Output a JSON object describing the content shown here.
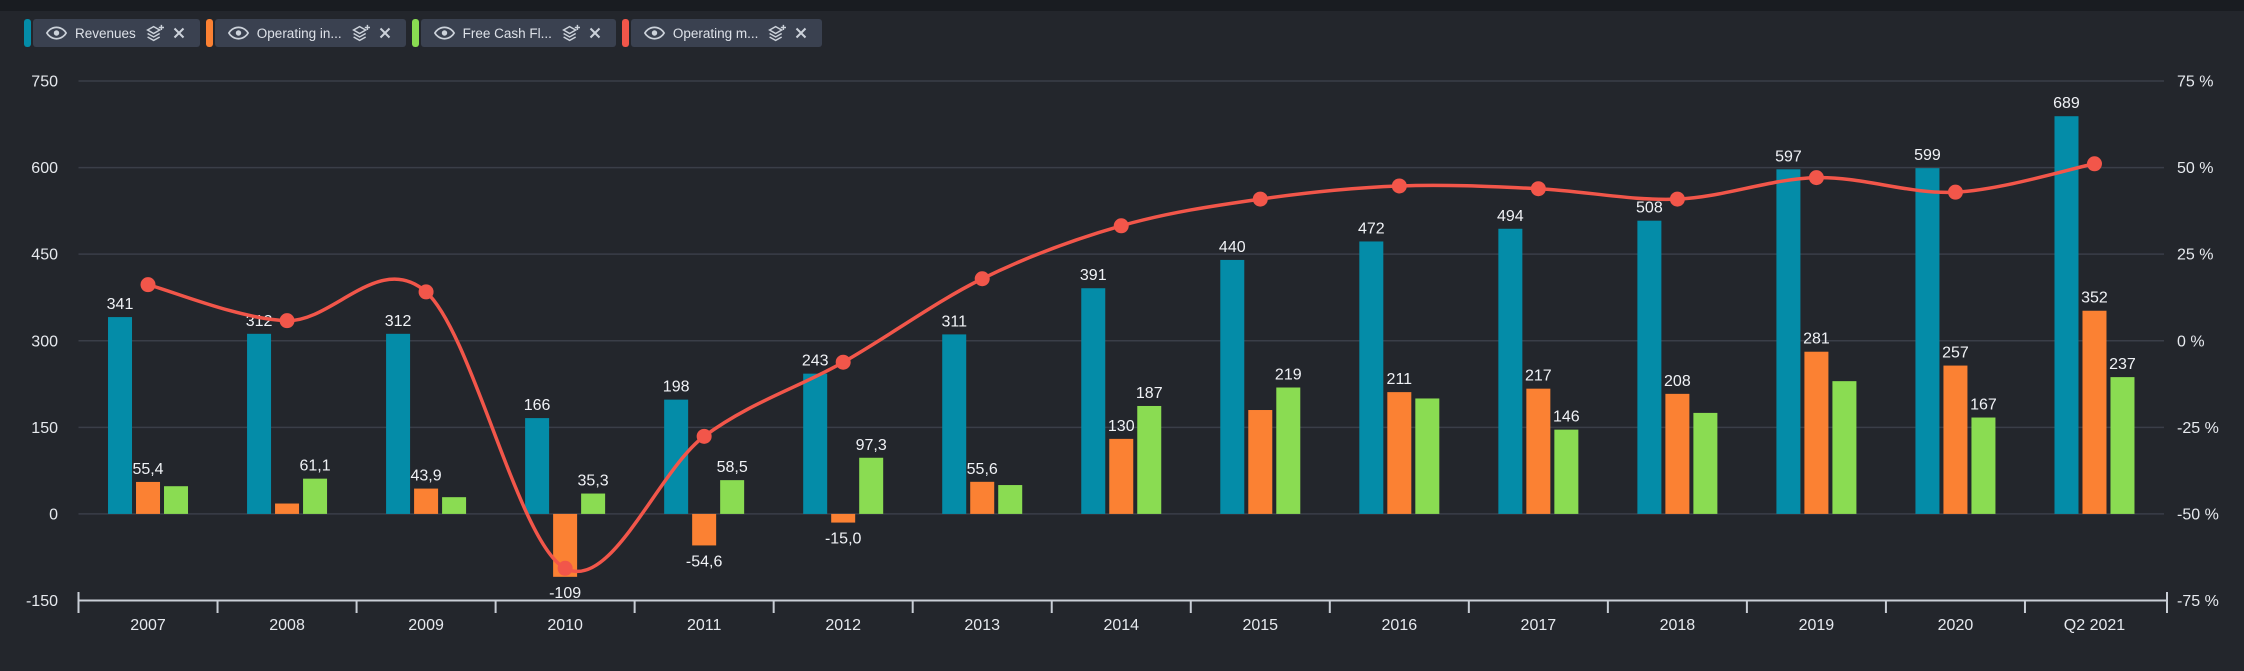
{
  "theme": {
    "background": "#23262c",
    "top_strip": "#191c21",
    "chip_background": "#3a4150",
    "grid_color": "#3a3e48",
    "axis_color": "#c9ced6",
    "tick_text_color": "#e6e9ee",
    "value_label_color": "#f0f2f6"
  },
  "legend": {
    "position": "top-left",
    "chips": [
      {
        "label": "Revenues",
        "color": "#048ca8",
        "visibility_icon": "eye",
        "layers_icon": "layers-plus",
        "close_icon": "x"
      },
      {
        "label": "Operating in...",
        "color": "#fb8133",
        "visibility_icon": "eye",
        "layers_icon": "layers-plus",
        "close_icon": "x"
      },
      {
        "label": "Free Cash Fl...",
        "color": "#8adc52",
        "visibility_icon": "eye",
        "layers_icon": "layers-plus",
        "close_icon": "x"
      },
      {
        "label": "Operating m...",
        "color": "#f2564a",
        "visibility_icon": "eye",
        "layers_icon": "layers-plus",
        "close_icon": "x"
      }
    ]
  },
  "chart_data": {
    "type": "combo-bar-line",
    "grid": "horizontal",
    "legend_position": "top-left",
    "categories": [
      "2007",
      "2008",
      "2009",
      "2010",
      "2011",
      "2012",
      "2013",
      "2014",
      "2015",
      "2016",
      "2017",
      "2018",
      "2019",
      "2020",
      "Q2 2021"
    ],
    "series": [
      {
        "name": "Revenues",
        "key": "revenues",
        "type": "bar",
        "axis": "left",
        "color": "#048ca8",
        "values": [
          341,
          312,
          312,
          166,
          198,
          243,
          311,
          391,
          440,
          472,
          494,
          508,
          597,
          599,
          689
        ],
        "labels": [
          "341",
          "312",
          "312",
          "166",
          "198",
          "243",
          "311",
          "391",
          "440",
          "472",
          "494",
          "508",
          "597",
          "599",
          "689"
        ]
      },
      {
        "name": "Operating in...",
        "key": "operating-income",
        "type": "bar",
        "axis": "left",
        "color": "#fb8133",
        "values": [
          55.4,
          18,
          43.9,
          -109,
          -54.6,
          -15,
          55.6,
          130,
          180,
          211,
          217,
          208,
          281,
          257,
          352
        ],
        "labels": [
          "55,4",
          null,
          "43,9",
          "-109",
          "-54,6",
          "-15,0",
          "55,6",
          "130",
          null,
          "211",
          "217",
          "208",
          "281",
          "257",
          "352"
        ]
      },
      {
        "name": "Free Cash Fl...",
        "key": "free-cash-flow",
        "type": "bar",
        "axis": "left",
        "color": "#8adc52",
        "values": [
          48,
          61.1,
          29,
          35.3,
          58.5,
          97.3,
          50,
          187,
          219,
          200,
          146,
          175,
          230,
          167,
          237
        ],
        "labels": [
          null,
          "61,1",
          null,
          "35,3",
          "58,5",
          "97,3",
          null,
          "187",
          "219",
          null,
          "146",
          null,
          null,
          "167",
          "237"
        ]
      },
      {
        "name": "Operating m...",
        "key": "operating-margin",
        "type": "line",
        "axis": "right",
        "color": "#f2564a",
        "values": [
          16.2,
          5.8,
          14.1,
          -65.7,
          -27.6,
          -6.2,
          17.9,
          33.2,
          40.9,
          44.7,
          43.9,
          40.9,
          47.1,
          42.9,
          51.1
        ],
        "labels": [
          null,
          null,
          null,
          null,
          null,
          null,
          null,
          null,
          null,
          null,
          null,
          null,
          null,
          null,
          null
        ]
      }
    ],
    "left_axis": {
      "min": -150,
      "max": 750,
      "ticks": [
        "750",
        "600",
        "450",
        "300",
        "150",
        "0",
        "-150"
      ]
    },
    "right_axis": {
      "min": -75,
      "max": 75,
      "ticks": [
        "75 %",
        "50 %",
        "25 %",
        "0 %",
        "-25 %",
        "-50 %",
        "-75 %"
      ]
    }
  }
}
